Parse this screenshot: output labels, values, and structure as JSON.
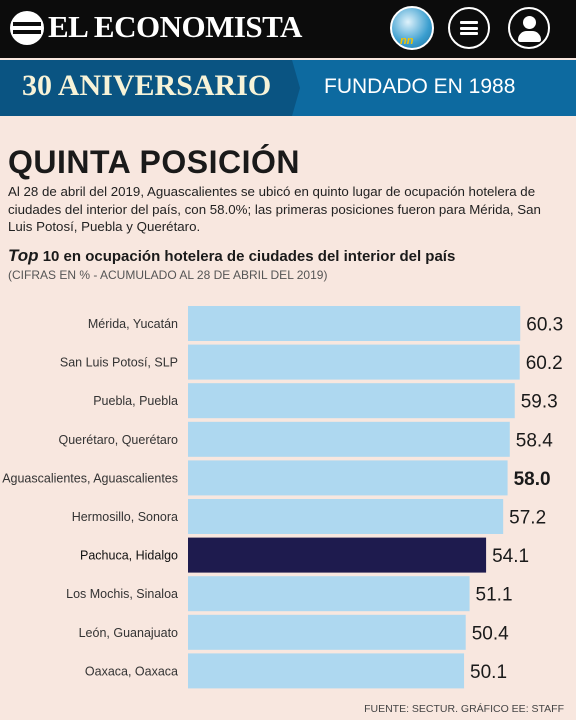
{
  "header": {
    "brand": "EL ECONOMISTA",
    "badge_text": "nn",
    "menu_icon": "menu-icon",
    "user_icon": "user-icon"
  },
  "banner": {
    "anniversary": "30 ANIVERSARIO",
    "founded": "FUNDADO EN 1988"
  },
  "article": {
    "headline": "QUINTA POSICIÓN",
    "intro": "Al 28 de abril del 2019, Aguascalientes se ubicó en quinto lugar de ocupación hotelera de ciudades del interior del país, con 58.0%; las primeras posiciones fueron para Mérida, San Luis Potosí, Puebla y Querétaro."
  },
  "chart_data": {
    "type": "bar",
    "orientation": "horizontal",
    "title_emphasis": "Top",
    "title": "10 en ocupación hotelera de ciudades del interior del país",
    "subtitle": "(CIFRAS EN % - ACUMULADO AL 28 DE ABRIL DEL 2019)",
    "categories": [
      "Mérida, Yucatán",
      "San Luis Potosí, SLP",
      "Puebla, Puebla",
      "Querétaro, Querétaro",
      "Aguascalientes, Aguascalientes",
      "Hermosillo, Sonora",
      "Pachuca, Hidalgo",
      "Los Mochis, Sinaloa",
      "León, Guanajuato",
      "Oaxaca, Oaxaca"
    ],
    "values": [
      60.3,
      60.2,
      59.3,
      58.4,
      58.0,
      57.2,
      54.1,
      51.1,
      50.4,
      50.1
    ],
    "value_labels": [
      "60.3",
      "60.2",
      "59.3",
      "58.4",
      "58.0",
      "57.2",
      "54.1",
      "51.1",
      "50.4",
      "50.1"
    ],
    "highlight_index": 6,
    "bold_label_index": 4,
    "colors": {
      "default": "#aed8f0",
      "highlight": "#1e1b4e"
    },
    "axis_ticks": "none",
    "grid": false
  },
  "footer": {
    "source": "FUENTE: SECTUR. GRÁFICO EE: STAFF"
  }
}
